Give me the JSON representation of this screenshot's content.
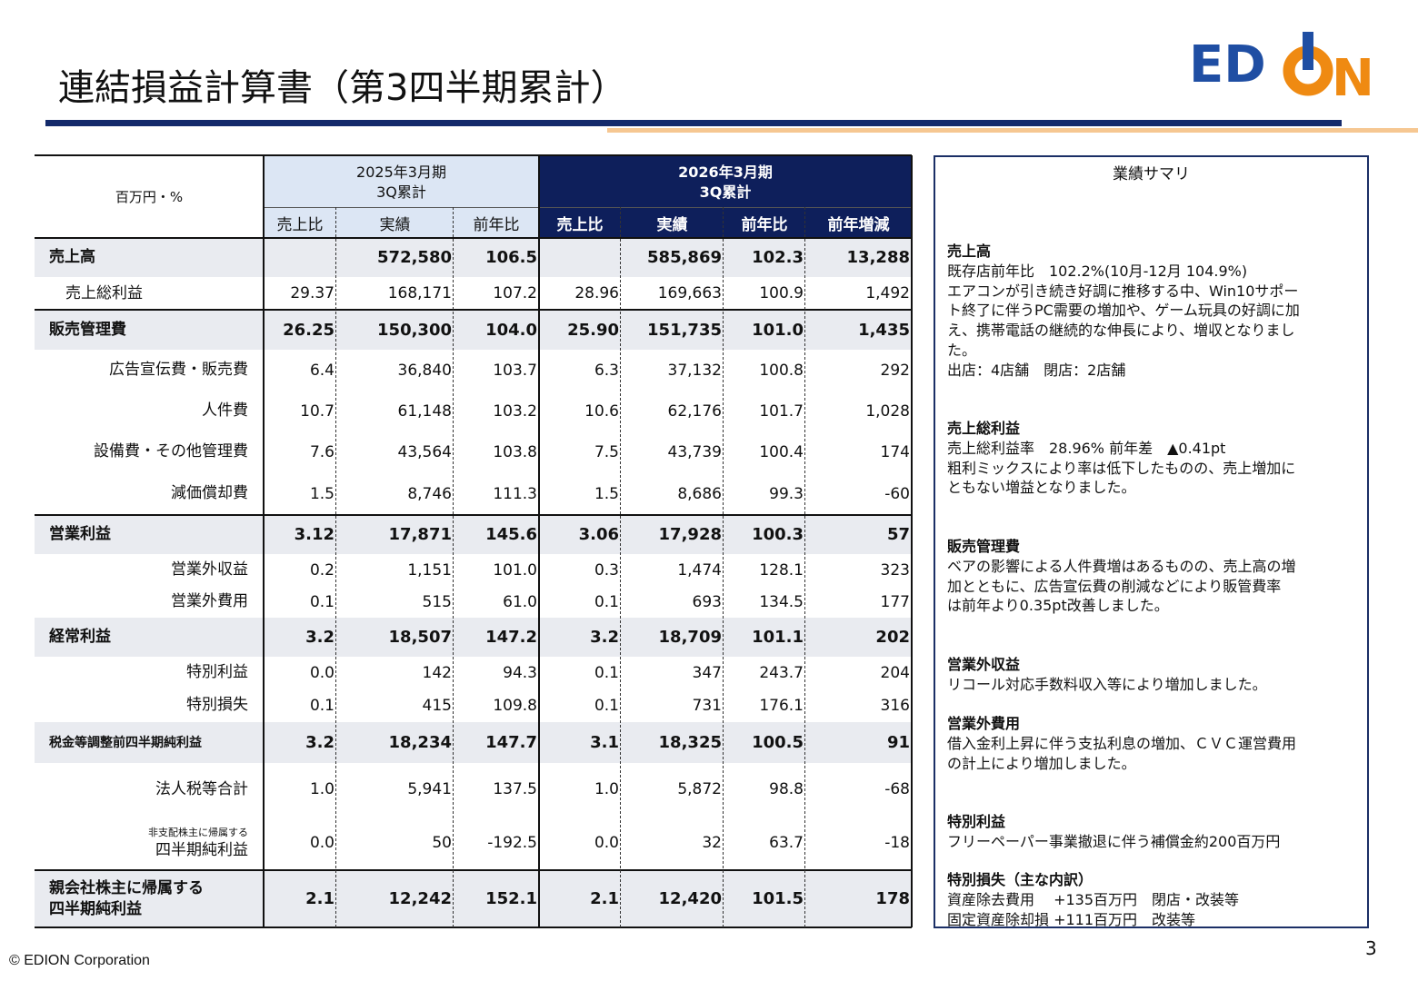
{
  "header": {
    "title": "連結損益計算書（第3四半期累計）",
    "logo": {
      "left": "ED",
      "right": "N"
    }
  },
  "table": {
    "unit": "百万円・%",
    "prev_period": [
      "2025年3月期",
      "3Q累計"
    ],
    "curr_period": [
      "2026年3月期",
      "3Q累計"
    ],
    "prev_columns": [
      "売上比",
      "実績",
      "前年比"
    ],
    "curr_columns": [
      "売上比",
      "実績",
      "前年比",
      "前年増減"
    ],
    "rows": [
      {
        "label": [
          "売上高"
        ],
        "values": [
          null,
          "572,580",
          "106.5",
          null,
          "585,869",
          "102.3",
          "13,288"
        ]
      },
      {
        "label": [
          "売上総利益"
        ],
        "values": [
          "29.37",
          "168,171",
          "107.2",
          "28.96",
          "169,663",
          "100.9",
          "1,492"
        ]
      },
      {
        "label": [
          "販売管理費"
        ],
        "values": [
          "26.25",
          "150,300",
          "104.0",
          "25.90",
          "151,735",
          "101.0",
          "1,435"
        ]
      },
      {
        "label": [
          "広告宣伝費・販売費"
        ],
        "values": [
          "6.4",
          "36,840",
          "103.7",
          "6.3",
          "37,132",
          "100.8",
          "292"
        ]
      },
      {
        "label": [
          "人件費"
        ],
        "values": [
          "10.7",
          "61,148",
          "103.2",
          "10.6",
          "62,176",
          "101.7",
          "1,028"
        ]
      },
      {
        "label": [
          "設備費・その他管理費"
        ],
        "values": [
          "7.6",
          "43,564",
          "103.8",
          "7.5",
          "43,739",
          "100.4",
          "174"
        ]
      },
      {
        "label": [
          "減価償却費"
        ],
        "values": [
          "1.5",
          "8,746",
          "111.3",
          "1.5",
          "8,686",
          "99.3",
          "-60"
        ]
      },
      {
        "label": [
          "営業利益"
        ],
        "values": [
          "3.12",
          "17,871",
          "145.6",
          "3.06",
          "17,928",
          "100.3",
          "57"
        ]
      },
      {
        "label": [
          "営業外収益"
        ],
        "values": [
          "0.2",
          "1,151",
          "101.0",
          "0.3",
          "1,474",
          "128.1",
          "323"
        ]
      },
      {
        "label": [
          "営業外費用"
        ],
        "values": [
          "0.1",
          "515",
          "61.0",
          "0.1",
          "693",
          "134.5",
          "177"
        ]
      },
      {
        "label": [
          "経常利益"
        ],
        "values": [
          "3.2",
          "18,507",
          "147.2",
          "3.2",
          "18,709",
          "101.1",
          "202"
        ]
      },
      {
        "label": [
          "特別利益"
        ],
        "values": [
          "0.0",
          "142",
          "94.3",
          "0.1",
          "347",
          "243.7",
          "204"
        ]
      },
      {
        "label": [
          "特別損失"
        ],
        "values": [
          "0.1",
          "415",
          "109.8",
          "0.1",
          "731",
          "176.1",
          "316"
        ]
      },
      {
        "label": [
          "税金等調整前四半期純利益"
        ],
        "values": [
          "3.2",
          "18,234",
          "147.7",
          "3.1",
          "18,325",
          "100.5",
          "91"
        ]
      },
      {
        "label": [
          "法人税等合計"
        ],
        "values": [
          "1.0",
          "5,941",
          "137.5",
          "1.0",
          "5,872",
          "98.8",
          "-68"
        ]
      },
      {
        "label": [
          "非支配株主に帰属する",
          "四半期純利益"
        ],
        "values": [
          "0.0",
          "50",
          "-192.5",
          "0.0",
          "32",
          "63.7",
          "-18"
        ]
      },
      {
        "label": [
          "親会社株主に帰属する",
          "四半期純利益"
        ],
        "values": [
          "2.1",
          "12,242",
          "152.1",
          "2.1",
          "12,420",
          "101.5",
          "178"
        ]
      }
    ]
  },
  "summary": {
    "title": "業績サマリ",
    "sections": [
      {
        "heading": "売上高",
        "lines": [
          "既存店前年比　102.2%(10月-12月 104.9%)",
          "エアコンが引き続き好調に推移する中、Win10サポー",
          "ト終了に伴うPC需要の増加や、ゲーム玩具の好調に加",
          "え、携帯電話の継続的な伸長により、増収となりまし",
          "た。",
          "出店：4店舗　閉店：2店舗"
        ]
      },
      {
        "heading": "売上総利益",
        "lines": [
          "売上総利益率　28.96% 前年差　▲0.41pt",
          "粗利ミックスにより率は低下したものの、売上増加に",
          "ともない増益となりました。"
        ]
      },
      {
        "heading": "販売管理費",
        "lines": [
          "ベアの影響による人件費増はあるものの、売上高の増",
          "加とともに、広告宣伝費の削減などにより販管費率",
          "は前年より0.35pt改善しました。"
        ]
      },
      {
        "heading": "営業外収益",
        "lines": [
          "リコール対応手数料収入等により増加しました。"
        ]
      },
      {
        "heading": "営業外費用",
        "lines": [
          "借入金利上昇に伴う支払利息の増加、ＣＶＣ運営費用",
          "の計上により増加しました。"
        ]
      },
      {
        "heading": "特別利益",
        "lines": [
          "フリーペーパー事業撤退に伴う補償金約200百万円"
        ]
      },
      {
        "heading": "特別損失（主な内訳）",
        "lines": [
          "資産除去費用　 +135百万円　閉店・改装等",
          "固定資産除却損 +111百万円　改装等"
        ]
      }
    ]
  },
  "footer": {
    "copyright": "© EDION Corporation",
    "page": "3"
  }
}
